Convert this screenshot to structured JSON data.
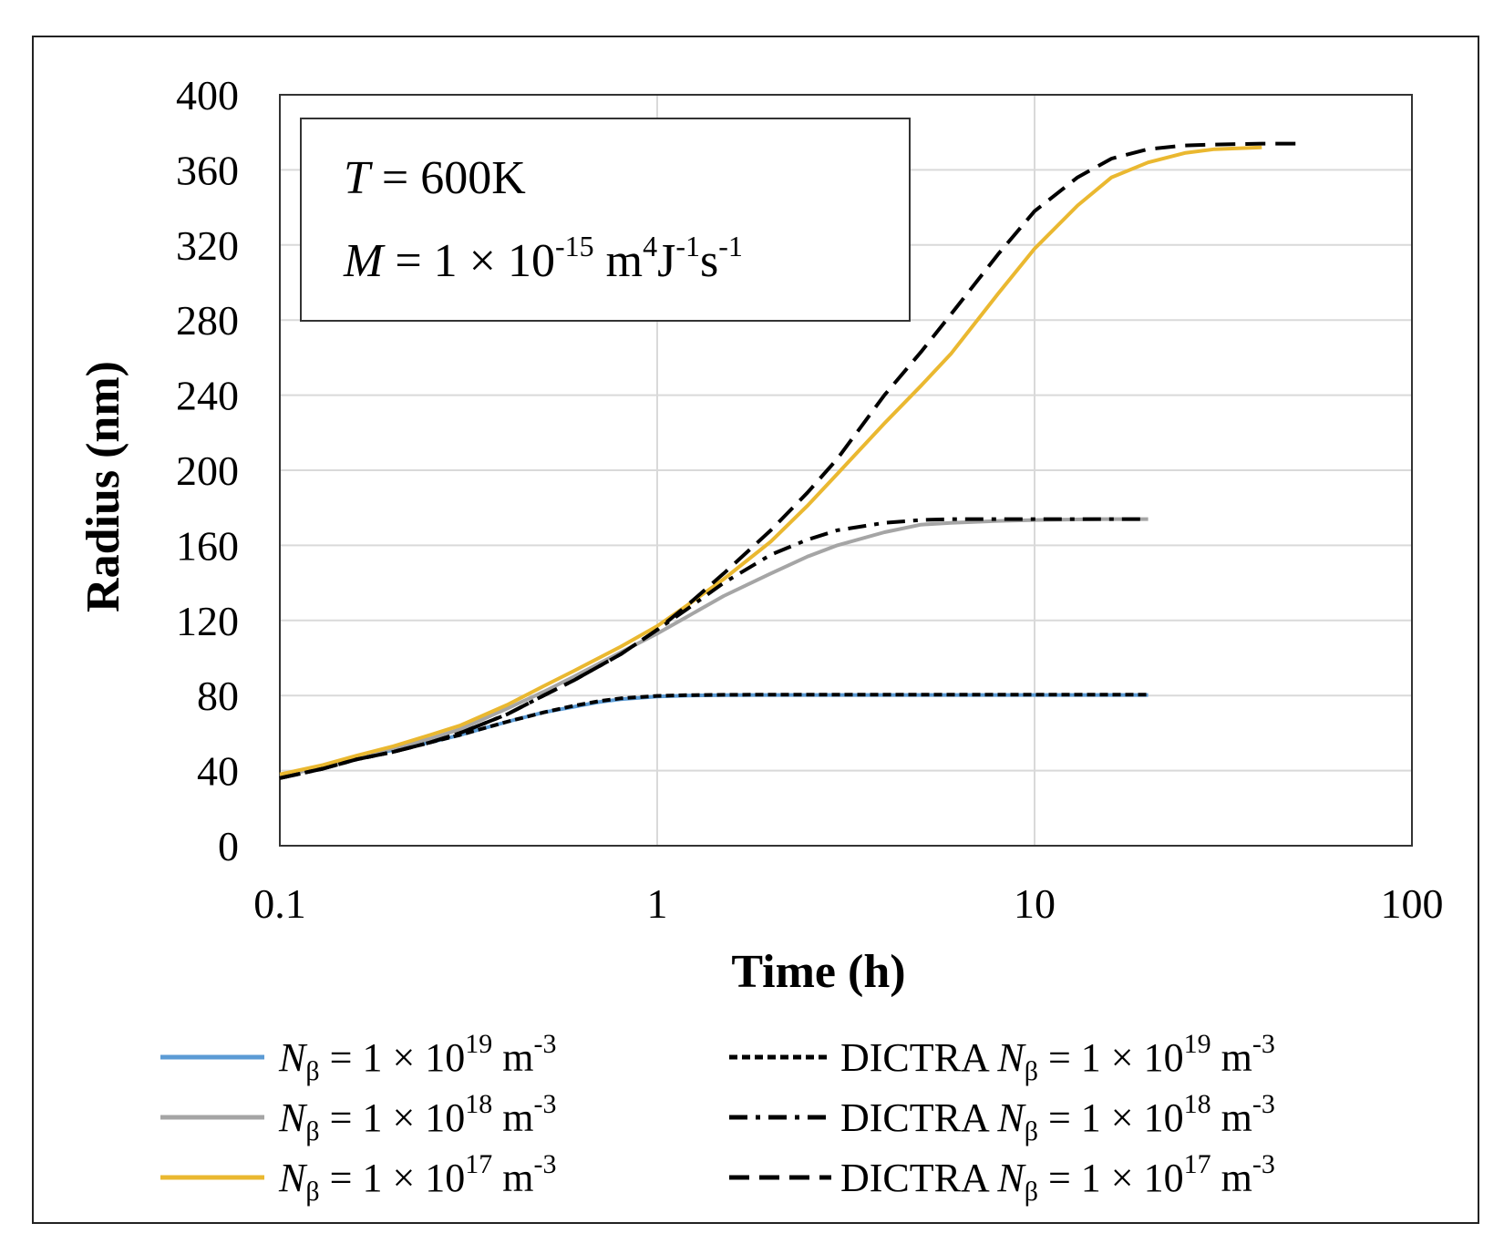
{
  "chart_data": {
    "type": "line",
    "title": "",
    "xlabel": "Time (h)",
    "ylabel": "Radius (nm)",
    "xscale": "log",
    "xlim": [
      0.1,
      100
    ],
    "ylim": [
      0,
      400
    ],
    "x_ticks": [
      {
        "value": 0.1,
        "label": "0.1"
      },
      {
        "value": 1,
        "label": "1"
      },
      {
        "value": 10,
        "label": "10"
      },
      {
        "value": 100,
        "label": "100"
      }
    ],
    "y_ticks": [
      {
        "value": 0,
        "label": "0"
      },
      {
        "value": 40,
        "label": "40"
      },
      {
        "value": 80,
        "label": "80"
      },
      {
        "value": 120,
        "label": "120"
      },
      {
        "value": 160,
        "label": "160"
      },
      {
        "value": 200,
        "label": "200"
      },
      {
        "value": 240,
        "label": "240"
      },
      {
        "value": 280,
        "label": "280"
      },
      {
        "value": 320,
        "label": "320"
      },
      {
        "value": 360,
        "label": "360"
      },
      {
        "value": 400,
        "label": "400"
      }
    ],
    "grid": true,
    "annotation": {
      "line1": {
        "var": "T",
        "rest": " = 600K"
      },
      "line2": {
        "var": "M",
        "eq": " = 1 × 10",
        "exp1": "-15",
        "unit_m": " m",
        "exp2": "4",
        "unit_j": "J",
        "exp3": "-1",
        "unit_s": "s",
        "exp4": "-1"
      }
    },
    "legend_position": "bottom",
    "series": [
      {
        "name": "Nβ = 1 × 10^19 m^-3",
        "label": {
          "prefix": "",
          "var": "N",
          "sub": "β",
          "eq": " = 1 × 10",
          "exp": "19",
          "unit": " m",
          "uexp": "-3"
        },
        "color": "#5b9bd5",
        "style": "solid",
        "legend_col": 0,
        "legend_row": 0,
        "x": [
          0.1,
          0.13,
          0.16,
          0.2,
          0.25,
          0.3,
          0.4,
          0.5,
          0.6,
          0.7,
          0.8,
          1.0,
          1.2,
          1.5,
          2,
          3,
          5,
          10,
          20
        ],
        "y": [
          37,
          42,
          47,
          51,
          55,
          59,
          66,
          71,
          74,
          76.5,
          78,
          79.5,
          80,
          80.2,
          80.3,
          80.3,
          80.3,
          80.3,
          80.3
        ]
      },
      {
        "name": "Nβ = 1 × 10^18 m^-3",
        "label": {
          "prefix": "",
          "var": "N",
          "sub": "β",
          "eq": " = 1 × 10",
          "exp": "18",
          "unit": " m",
          "uexp": "-3"
        },
        "color": "#a5a5a5",
        "style": "solid",
        "legend_col": 0,
        "legend_row": 1,
        "x": [
          0.1,
          0.13,
          0.16,
          0.2,
          0.25,
          0.3,
          0.4,
          0.5,
          0.6,
          0.8,
          1.0,
          1.2,
          1.5,
          2,
          2.5,
          3,
          4,
          5,
          6,
          8,
          10,
          15,
          20
        ],
        "y": [
          37,
          42,
          47,
          52,
          57,
          62,
          73,
          82,
          90,
          103,
          113,
          122,
          133,
          145,
          154,
          160,
          167,
          171,
          172,
          173,
          173.5,
          174,
          174
        ]
      },
      {
        "name": "Nβ = 1 × 10^17 m^-3",
        "label": {
          "prefix": "",
          "var": "N",
          "sub": "β",
          "eq": " = 1 × 10",
          "exp": "17",
          "unit": " m",
          "uexp": "-3"
        },
        "color": "#eab830",
        "style": "solid",
        "legend_col": 0,
        "legend_row": 2,
        "x": [
          0.1,
          0.13,
          0.16,
          0.2,
          0.25,
          0.3,
          0.4,
          0.5,
          0.6,
          0.8,
          1.0,
          1.2,
          1.5,
          2,
          2.5,
          3,
          4,
          5,
          6,
          8,
          10,
          13,
          16,
          20,
          25,
          30,
          40
        ],
        "y": [
          38,
          43,
          48,
          53,
          59,
          64,
          75,
          85,
          93,
          106,
          117,
          128,
          142,
          162,
          181,
          198,
          225,
          245,
          262,
          294,
          318,
          341,
          356,
          364,
          369,
          371,
          372
        ]
      },
      {
        "name": "DICTRA Nβ = 1 × 10^19 m^-3",
        "label": {
          "prefix": "DICTRA  ",
          "var": "N",
          "sub": "β",
          "eq": " = 1 × 10",
          "exp": "19",
          "unit": " m",
          "uexp": "-3"
        },
        "color": "#000000",
        "style": "short-dash",
        "legend_col": 1,
        "legend_row": 0,
        "x": [
          0.1,
          0.13,
          0.16,
          0.2,
          0.25,
          0.3,
          0.4,
          0.5,
          0.6,
          0.7,
          0.8,
          1.0,
          1.2,
          1.5,
          2,
          3,
          5,
          10,
          20
        ],
        "y": [
          36,
          41,
          46,
          50,
          55,
          59,
          66,
          71,
          74.5,
          77,
          78.5,
          79.8,
          80.2,
          80.4,
          80.5,
          80.5,
          80.5,
          80.5,
          80.5
        ]
      },
      {
        "name": "DICTRA Nβ = 1 × 10^18 m^-3",
        "label": {
          "prefix": "DICTRA  ",
          "var": "N",
          "sub": "β",
          "eq": " = 1 × 10",
          "exp": "18",
          "unit": " m",
          "uexp": "-3"
        },
        "color": "#000000",
        "style": "dash-dot",
        "legend_col": 1,
        "legend_row": 1,
        "x": [
          0.1,
          0.13,
          0.16,
          0.2,
          0.25,
          0.3,
          0.4,
          0.5,
          0.6,
          0.8,
          1.0,
          1.2,
          1.5,
          2,
          2.5,
          3,
          4,
          5,
          6,
          8,
          10,
          15,
          20
        ],
        "y": [
          36,
          41,
          46,
          50,
          55,
          60,
          70,
          80,
          88,
          102,
          115,
          126,
          140,
          155,
          163,
          168,
          172,
          173.5,
          174,
          174,
          174,
          174,
          174
        ]
      },
      {
        "name": "DICTRA Nβ = 1 × 10^17 m^-3",
        "label": {
          "prefix": "DICTRA  ",
          "var": "N",
          "sub": "β",
          "eq": " = 1 × 10",
          "exp": "17",
          "unit": " m",
          "uexp": "-3"
        },
        "color": "#000000",
        "style": "long-dash",
        "legend_col": 1,
        "legend_row": 2,
        "x": [
          0.1,
          0.13,
          0.16,
          0.2,
          0.25,
          0.3,
          0.4,
          0.5,
          0.6,
          0.8,
          1.0,
          1.2,
          1.5,
          2,
          2.5,
          3,
          4,
          5,
          6,
          8,
          10,
          13,
          16,
          20,
          25,
          30,
          40,
          50
        ],
        "y": [
          36,
          41,
          46,
          50,
          55,
          60,
          70,
          80,
          88,
          102,
          115,
          128,
          145,
          168,
          188,
          206,
          240,
          263,
          283,
          315,
          338,
          356,
          366,
          371,
          373,
          373.5,
          374,
          374
        ]
      }
    ]
  }
}
